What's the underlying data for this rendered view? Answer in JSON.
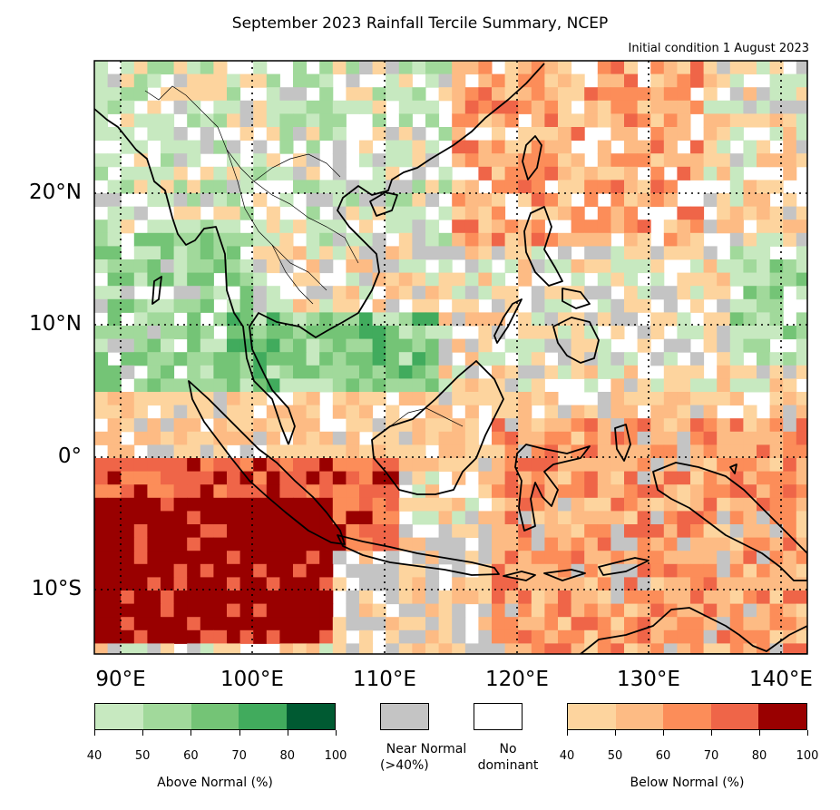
{
  "title": "September 2023 Rainfall Tercile Summary, NCEP",
  "subtitle": "Initial condition 1 August 2023",
  "lat_labels": [
    "20°N",
    "10°N",
    "0°",
    "10°S"
  ],
  "lon_labels": [
    "90°E",
    "100°E",
    "110°E",
    "120°E",
    "130°E",
    "140°E"
  ],
  "colors": {
    "above": [
      "#c7e9c0",
      "#a1d99b",
      "#74c476",
      "#41ab5d",
      "#005a32"
    ],
    "below": [
      "#fdd49e",
      "#fdbb84",
      "#fc8d59",
      "#ef6548",
      "#990000"
    ],
    "near_normal": "#c4c4c4",
    "no_dominant": "#ffffff"
  },
  "legend": {
    "above": {
      "ticks": [
        "40",
        "50",
        "60",
        "70",
        "80",
        "100"
      ],
      "caption": "Above Normal (%)"
    },
    "near_normal": {
      "line1": "Near Normal",
      "line2": "(>40%)"
    },
    "no_dominant": {
      "line1": "No",
      "line2": "dominant"
    },
    "below": {
      "ticks": [
        "40",
        "50",
        "60",
        "70",
        "80",
        "100"
      ],
      "caption": "Below Normal (%)"
    }
  }
}
